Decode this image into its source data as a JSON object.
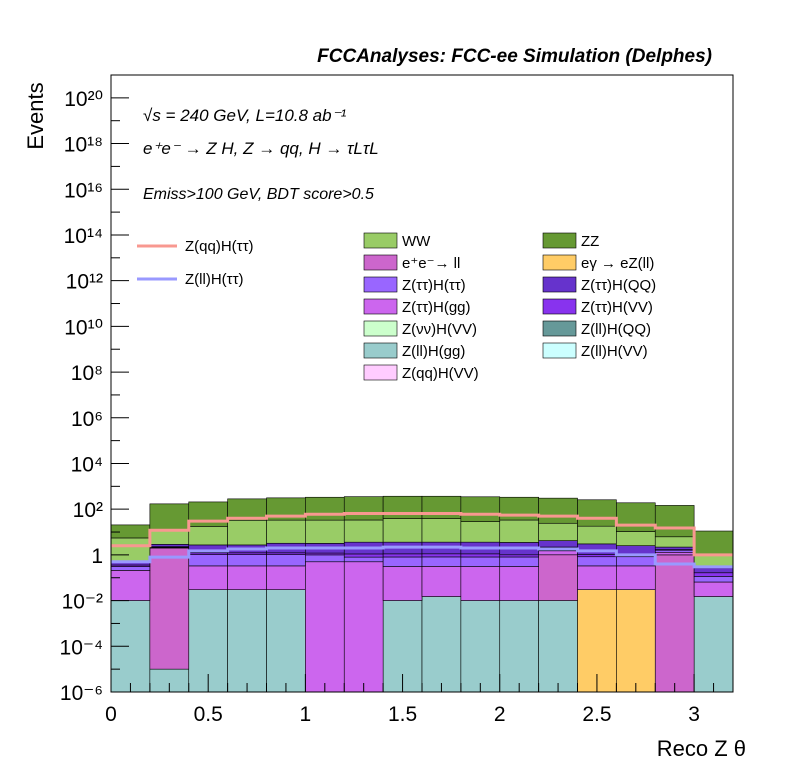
{
  "chart_data": {
    "type": "stacked-histogram",
    "title": "FCCAnalyses: FCC-ee Simulation (Delphes)",
    "annotations": {
      "line1": "√s = 240 GeV, L=10.8 ab⁻¹",
      "line2": "e⁺e⁻ → Z H, Z → qq, H → τLτL",
      "line3": "Emiss>100 GeV, BDT score>0.5"
    },
    "xlabel": "Reco Z θ",
    "ylabel": "Events",
    "xlim": [
      0,
      3.2
    ],
    "ylim": [
      1e-06,
      1e+21
    ],
    "yscale": "log",
    "xticks": [
      "0",
      "0.5",
      "1",
      "1.5",
      "2",
      "2.5",
      "3"
    ],
    "yticks": [
      "10⁻⁶",
      "10⁻⁴",
      "10⁻²",
      "1",
      "10²",
      "10⁴",
      "10⁶",
      "10⁸",
      "10¹⁰",
      "10¹²",
      "10¹⁴",
      "10¹⁶",
      "10¹⁸",
      "10²⁰"
    ],
    "bin_edges": [
      0,
      0.2,
      0.4,
      0.6,
      0.8,
      1.0,
      1.2,
      1.4,
      1.6,
      1.8,
      2.0,
      2.2,
      2.4,
      2.6,
      2.8,
      3.0,
      3.2
    ],
    "stack_order_bottom_to_top": [
      "Z(ll)H(gg)",
      "eγ → eZ(ll)",
      "e⁺e⁻→ ll",
      "Z(ττ)H(gg)",
      "Z(ττ)H(ττ)",
      "Z(ττ)H(VV)",
      "Z(ττ)H(QQ)",
      "WW",
      "ZZ"
    ],
    "series": [
      {
        "name": "Z(ll)H(gg)",
        "color": "#99cccc",
        "values": [
          0.01,
          1e-05,
          0.03,
          0.03,
          0.03,
          1e-06,
          1e-06,
          0.01,
          0.015,
          0.01,
          0.01,
          0.01,
          1e-06,
          1e-06,
          1e-06,
          0.015
        ]
      },
      {
        "name": "eγ → eZ(ll)",
        "color": "#ffcc66",
        "values": [
          0,
          0,
          0,
          0,
          0,
          0,
          0,
          0,
          0,
          0,
          0,
          0,
          0.03,
          0.03,
          0,
          0
        ]
      },
      {
        "name": "e⁺e⁻→ ll",
        "color": "#cc66cc",
        "values": [
          0,
          2.0,
          0,
          0,
          0,
          0,
          0,
          0,
          0,
          0,
          0,
          1.0,
          0,
          0,
          1.0,
          0
        ]
      },
      {
        "name": "Z(ττ)H(gg)",
        "color": "#cc66ee",
        "values": [
          0.2,
          0.1,
          0.3,
          0.3,
          0.3,
          0.5,
          0.5,
          0.3,
          0.3,
          0.3,
          0.3,
          0.5,
          0.3,
          0.3,
          0.3,
          0.05
        ]
      },
      {
        "name": "Z(ττ)H(ττ)",
        "color": "#9966ff",
        "values": [
          0.1,
          0.1,
          0.7,
          0.7,
          0.7,
          0.5,
          0.3,
          0.5,
          0.5,
          0.5,
          0.5,
          0.5,
          0.5,
          0.5,
          0.3,
          0.05
        ]
      },
      {
        "name": "Z(ττ)H(VV)",
        "color": "#8833ee",
        "values": [
          0.05,
          0.1,
          0.2,
          0.2,
          0.2,
          0.2,
          0.3,
          0.3,
          0.3,
          0.3,
          0.2,
          0.2,
          0.2,
          0.2,
          0.1,
          0.05
        ]
      },
      {
        "name": "Z(ττ)H(QQ)",
        "color": "#6633cc",
        "values": [
          0.15,
          0.6,
          1.5,
          1.5,
          2.0,
          2.0,
          2.5,
          2.5,
          2.5,
          2.5,
          2.5,
          2.0,
          2.0,
          1.5,
          0.5,
          0.1
        ]
      },
      {
        "name": "WW",
        "color": "#99cc66",
        "values": [
          5,
          8,
          15,
          30,
          30,
          30,
          30,
          35,
          35,
          25,
          30,
          20,
          15,
          8,
          4,
          0.8
        ]
      },
      {
        "name": "ZZ",
        "color": "#669933",
        "values": [
          15,
          160,
          190,
          250,
          280,
          300,
          320,
          330,
          330,
          320,
          300,
          280,
          240,
          180,
          140,
          10
        ]
      }
    ],
    "overlays": [
      {
        "name": "Z(qq)H(ττ)",
        "color": "#f89890",
        "values": [
          2.5,
          12,
          30,
          40,
          50,
          60,
          65,
          65,
          65,
          60,
          55,
          50,
          40,
          20,
          15,
          1.0
        ]
      },
      {
        "name": "Z(ll)H(ττ)",
        "color": "#9999ff",
        "values": [
          0.5,
          0.8,
          1.5,
          1.8,
          2.0,
          2.0,
          2.0,
          2.2,
          2.2,
          2.0,
          2.0,
          1.8,
          1.5,
          1.0,
          0.4,
          0.3
        ]
      }
    ],
    "legend": {
      "overlay_entries": [
        "Z(qq)H(ττ)",
        "Z(ll)H(ττ)"
      ],
      "columns": [
        [
          {
            "name": "WW",
            "color": "#99cc66"
          },
          {
            "name": "e⁺e⁻→ ll",
            "color": "#cc66cc"
          },
          {
            "name": "Z(ττ)H(ττ)",
            "color": "#9966ff"
          },
          {
            "name": "Z(ττ)H(gg)",
            "color": "#cc66ee"
          },
          {
            "name": "Z(νν)H(VV)",
            "color": "#ccffcc"
          },
          {
            "name": "Z(ll)H(gg)",
            "color": "#99cccc"
          },
          {
            "name": "Z(qq)H(VV)",
            "color": "#ffccff"
          }
        ],
        [
          {
            "name": "ZZ",
            "color": "#669933"
          },
          {
            "name": "eγ → eZ(ll)",
            "color": "#ffcc66"
          },
          {
            "name": "Z(ττ)H(QQ)",
            "color": "#6633cc"
          },
          {
            "name": "Z(ττ)H(VV)",
            "color": "#8833ee"
          },
          {
            "name": "Z(ll)H(QQ)",
            "color": "#669999"
          },
          {
            "name": "Z(ll)H(VV)",
            "color": "#ccffff"
          }
        ]
      ]
    }
  }
}
